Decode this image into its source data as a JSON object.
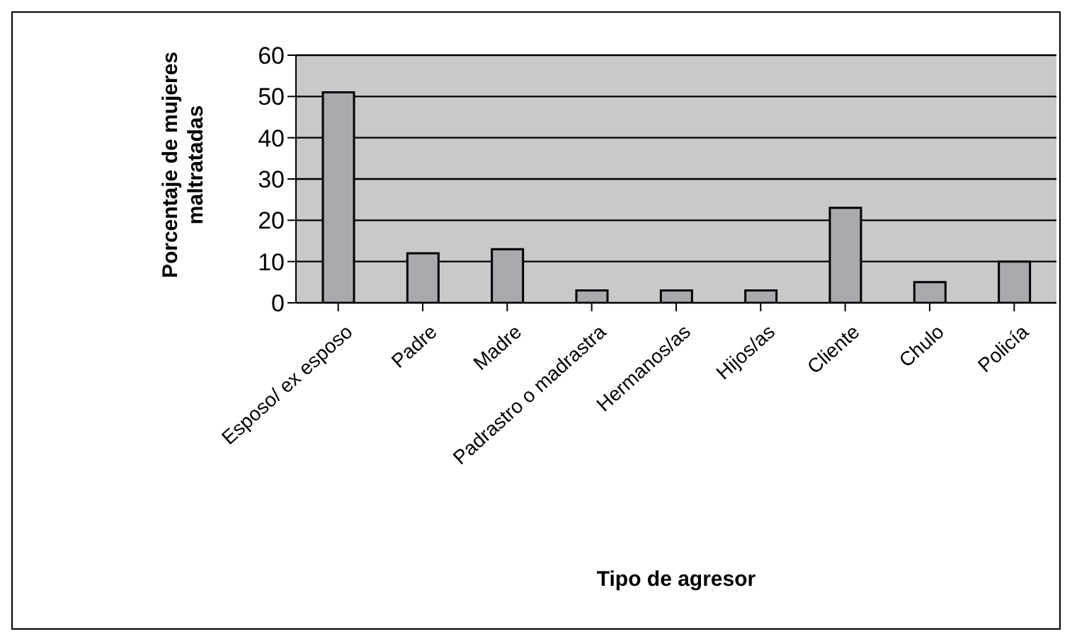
{
  "chart_data": {
    "type": "bar",
    "xlabel": "Tipo de agresor",
    "ylabel": "Porcentaje de mujeres maltratadas",
    "categories": [
      "Esposo/ ex esposo",
      "Padre",
      "Madre",
      "Padrastro o madrastra",
      "Hermanos/as",
      "Hijos/as",
      "Cliente",
      "Chulo",
      "Policía"
    ],
    "values": [
      51,
      12,
      13,
      3,
      3,
      3,
      23,
      5,
      10
    ],
    "color": "#a9aaae",
    "ylim": [
      0,
      60
    ],
    "yticks": [
      0,
      10,
      20,
      30,
      40,
      50,
      60
    ],
    "grid": "y"
  }
}
